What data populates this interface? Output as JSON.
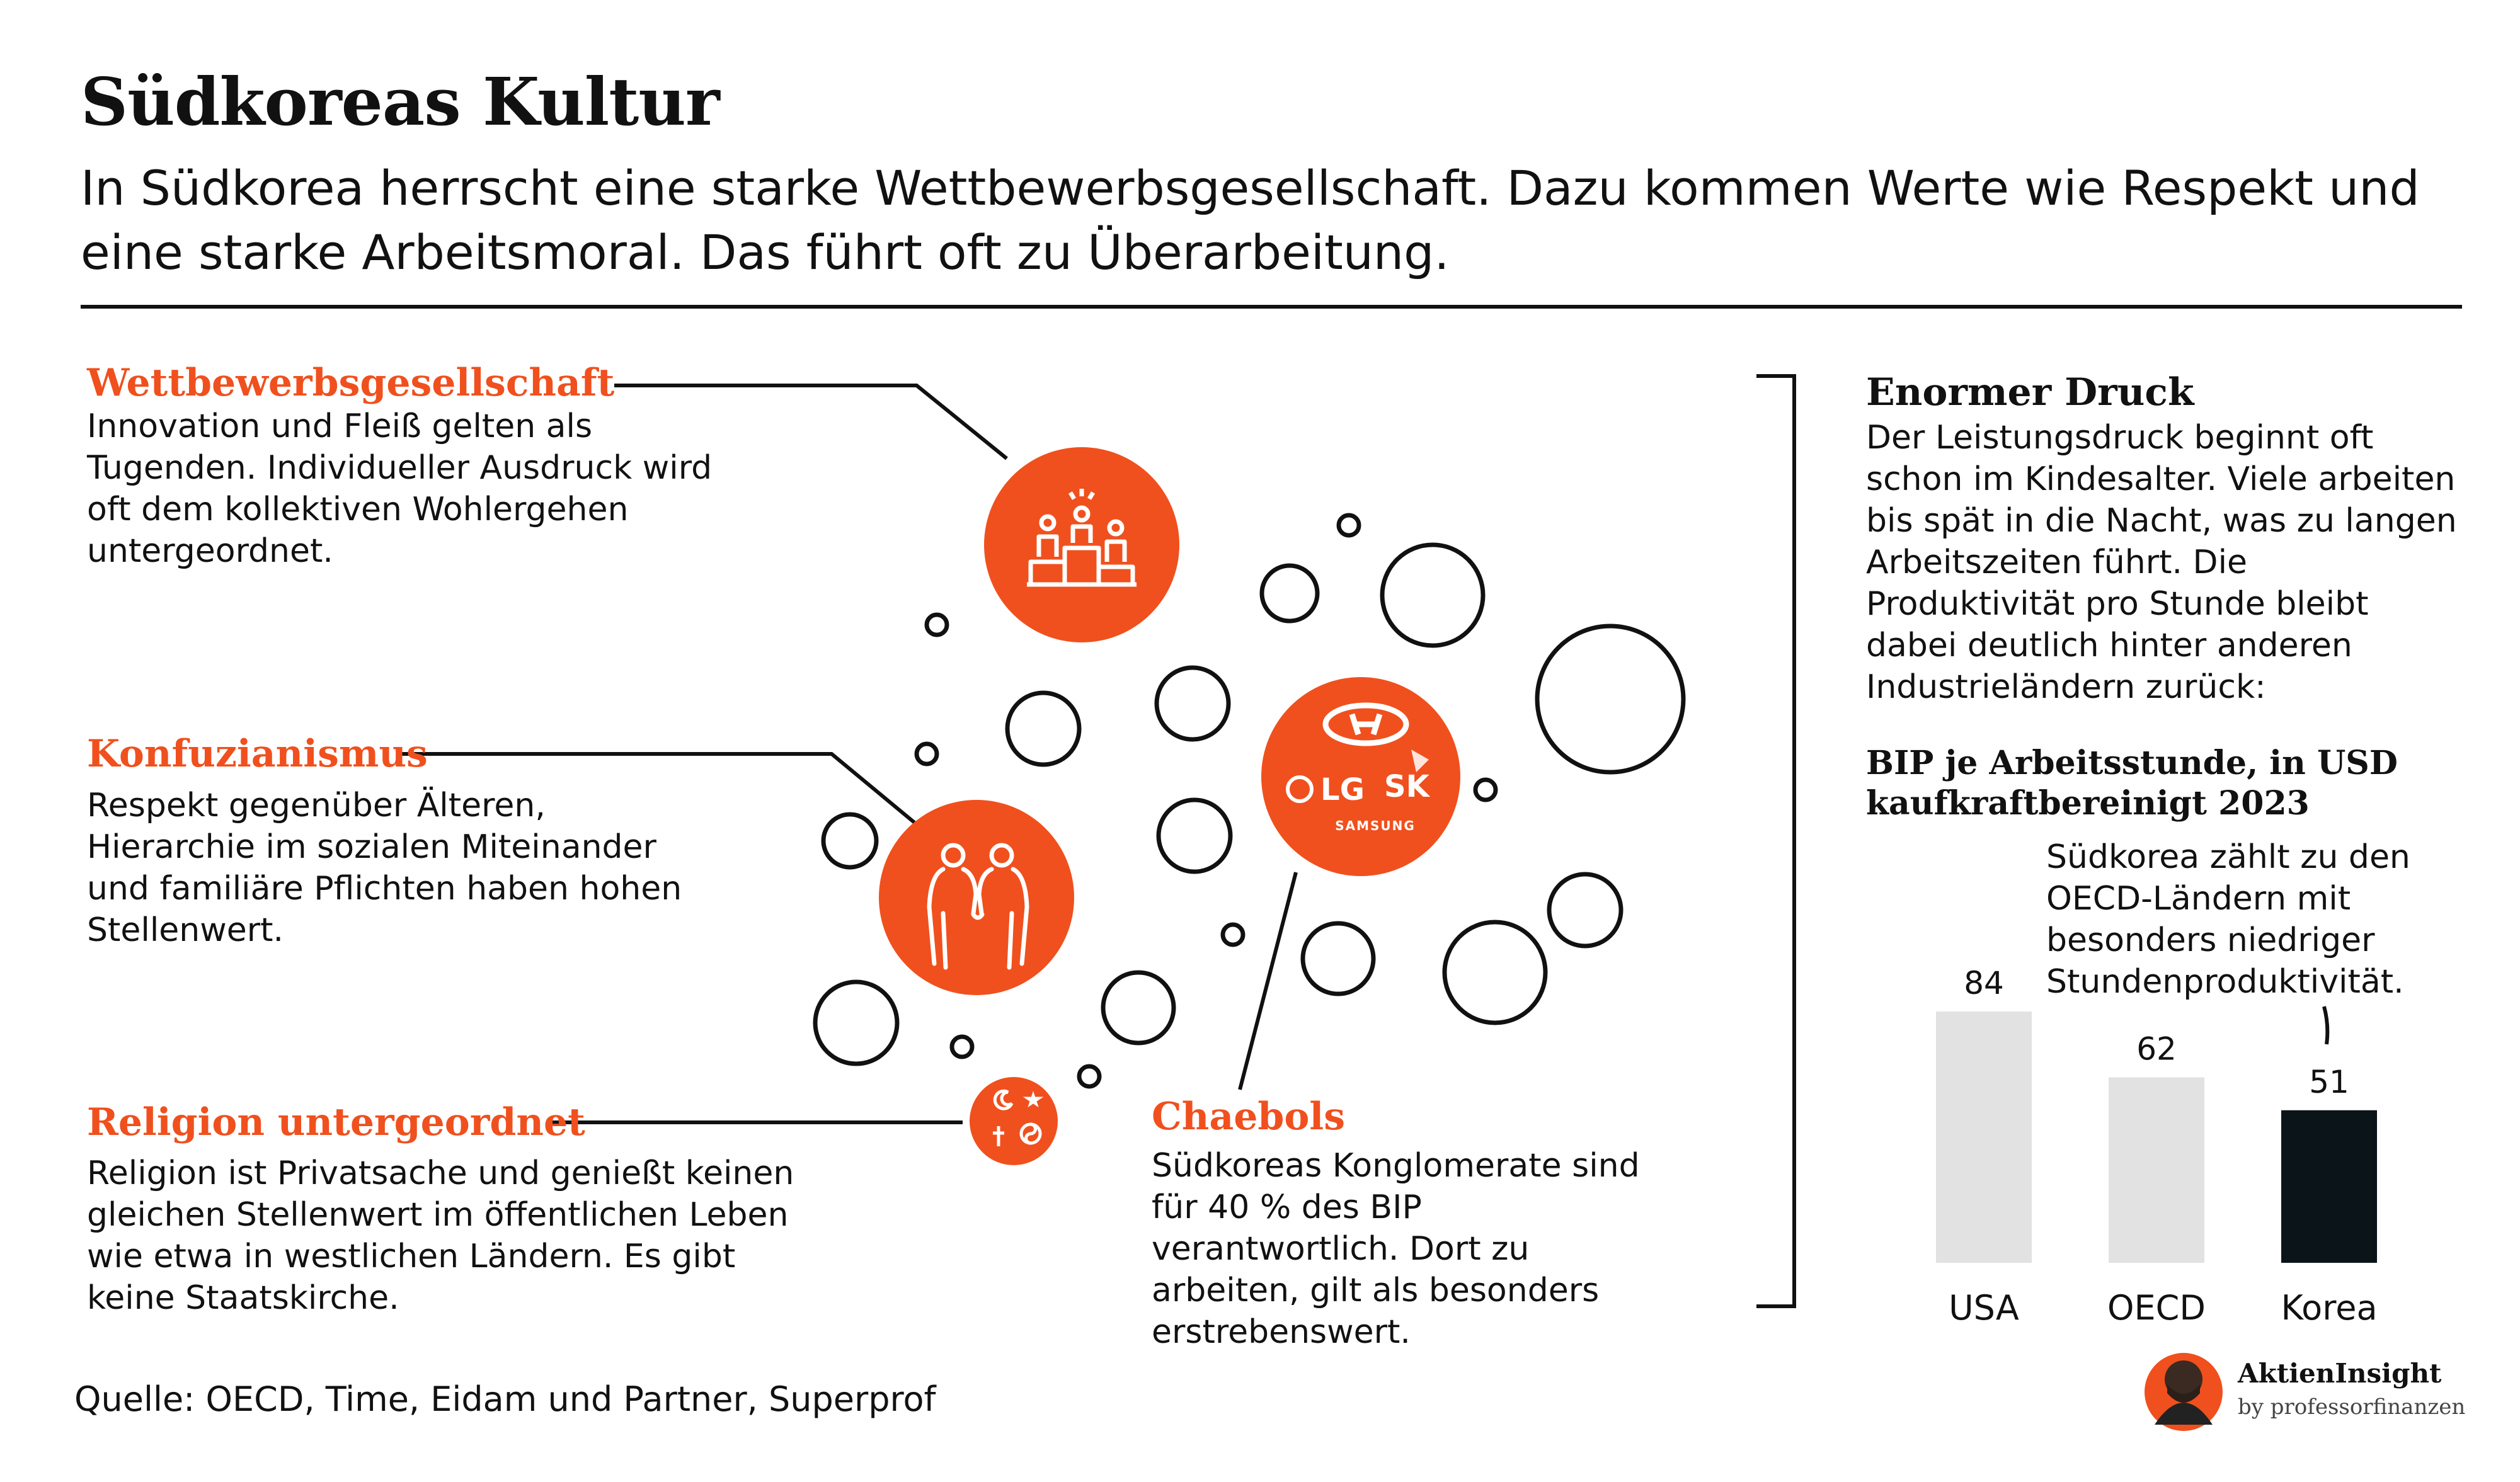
{
  "title": "Südkoreas Kultur",
  "subtitle": "In Südkorea herrscht eine starke Wettbewerbsgesellschaft. Dazu kommen Werte wie Respekt und eine starke Arbeitsmoral. Das führt oft zu Überarbeitung.",
  "sections": {
    "wettbewerb": {
      "heading": "Wettbewerbsgesellschaft",
      "text": "Innovation und Fleiß gelten als Tugenden. Individueller Ausdruck wird oft dem kollektiven Wohlergehen untergeordnet.",
      "icon": "podium-icon"
    },
    "konfuzianismus": {
      "heading": "Konfuzianismus",
      "text": "Respekt gegenüber Älteren, Hierarchie im sozialen Miteinander und familiäre Pflichten haben hohen Stellenwert.",
      "icon": "elder-respect-icon"
    },
    "religion": {
      "heading": "Religion untergeordnet",
      "text": "Religion ist Privatsache und genießt keinen gleichen Stellenwert im öffentlichen Leben wie etwa in westlichen Ländern. Es gibt keine Staatskirche.",
      "icon": "religion-symbols-icon"
    },
    "chaebols": {
      "heading": "Chaebols",
      "text": "Südkoreas Konglomerate sind für 40 % des BIP verantwortlich. Dort zu arbeiten, gilt als besonders erstrebenswert.",
      "logos": [
        "LG",
        "SK",
        "SAMSUNG"
      ]
    },
    "druck": {
      "heading": "Enormer Druck",
      "text": "Der Leistungsdruck beginnt oft schon im Kindesalter. Viele arbeiten bis spät in die Nacht, was zu langen Arbeitszeiten führt. Die Produktivität pro Stunde bleibt dabei deutlich hinter anderen Industrieländern zurück:"
    }
  },
  "chart_data": {
    "type": "bar",
    "title": "BIP je Arbeitsstunde, in USD kaufkraftbereinigt 2023",
    "categories": [
      "USA",
      "OECD",
      "Korea"
    ],
    "values": [
      84,
      62,
      51
    ],
    "colors": [
      "#e2e2e2",
      "#e2e2e2",
      "#0b1418"
    ],
    "annotation": "Südkorea zählt zu den OECD-Ländern mit besonders niedriger Stundenproduktivität."
  },
  "source": "Quelle: OECD, Time, Eidam und Partner, Superprof",
  "brand": {
    "name": "AktienInsight",
    "byline": "by professorfinanzen"
  },
  "colors": {
    "accent": "#f0501e",
    "text": "#111111",
    "bar_highlight": "#0b1418",
    "bar_neutral": "#e2e2e2"
  }
}
